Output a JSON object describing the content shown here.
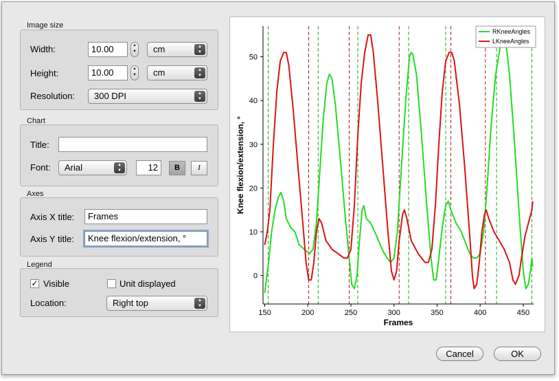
{
  "image_size": {
    "title": "Image size",
    "width_label": "Width:",
    "width_value": "10.00",
    "width_unit": "cm",
    "height_label": "Height:",
    "height_value": "10.00",
    "height_unit": "cm",
    "resolution_label": "Resolution:",
    "resolution_value": "300 DPI"
  },
  "chart_group": {
    "title": "Chart",
    "title_label": "Title:",
    "title_value": "",
    "font_label": "Font:",
    "font_value": "Arial",
    "font_size": "12",
    "bold_label": "B",
    "italic_label": "I"
  },
  "axes": {
    "title": "Axes",
    "x_label": "Axis X title:",
    "x_value": "Frames",
    "y_label": "Axis Y title:",
    "y_value": "Knee flexion/extension, °"
  },
  "legend": {
    "title": "Legend",
    "visible_label": "Visible",
    "visible_checked": "✓",
    "unit_label": "Unit displayed",
    "location_label": "Location:",
    "location_value": "Right top"
  },
  "buttons": {
    "cancel": "Cancel",
    "ok": "OK"
  },
  "chart_data": {
    "type": "line",
    "xlabel": "Frames",
    "ylabel": "Knee flexion/extension, °",
    "xlim": [
      148,
      462
    ],
    "ylim": [
      -6.5,
      57
    ],
    "x_ticks": [
      150,
      200,
      250,
      300,
      350,
      400,
      450
    ],
    "y_ticks": [
      0,
      10,
      20,
      30,
      40,
      50
    ],
    "legend_position": "top-right",
    "series": [
      {
        "name": "RKneeAngles",
        "color": "#22dd22",
        "points": [
          [
            150,
            -4
          ],
          [
            155,
            4
          ],
          [
            158,
            10
          ],
          [
            162,
            15
          ],
          [
            166,
            18
          ],
          [
            169,
            19
          ],
          [
            172,
            17
          ],
          [
            175,
            13
          ],
          [
            180,
            11
          ],
          [
            185,
            10
          ],
          [
            190,
            7
          ],
          [
            196,
            6
          ],
          [
            202,
            5
          ],
          [
            206,
            6
          ],
          [
            210,
            12
          ],
          [
            214,
            24
          ],
          [
            218,
            36
          ],
          [
            222,
            44
          ],
          [
            225,
            46
          ],
          [
            228,
            45
          ],
          [
            232,
            39
          ],
          [
            238,
            26
          ],
          [
            244,
            12
          ],
          [
            248,
            4
          ],
          [
            251,
            -2
          ],
          [
            254,
            -3
          ],
          [
            257,
            0
          ],
          [
            260,
            8
          ],
          [
            263,
            15
          ],
          [
            265,
            16
          ],
          [
            268,
            13
          ],
          [
            273,
            12
          ],
          [
            280,
            9
          ],
          [
            286,
            6
          ],
          [
            292,
            4
          ],
          [
            296,
            3
          ],
          [
            300,
            4
          ],
          [
            304,
            10
          ],
          [
            309,
            26
          ],
          [
            314,
            41
          ],
          [
            318,
            50
          ],
          [
            320,
            51
          ],
          [
            322,
            50.5
          ],
          [
            326,
            46
          ],
          [
            332,
            32
          ],
          [
            338,
            16
          ],
          [
            343,
            4
          ],
          [
            346,
            -1
          ],
          [
            349,
            -1
          ],
          [
            352,
            4
          ],
          [
            356,
            11
          ],
          [
            360,
            16
          ],
          [
            363,
            17
          ],
          [
            366,
            15
          ],
          [
            372,
            12
          ],
          [
            378,
            10
          ],
          [
            384,
            7
          ],
          [
            388,
            5
          ],
          [
            392,
            4
          ],
          [
            396,
            4
          ],
          [
            400,
            5
          ],
          [
            404,
            10
          ],
          [
            408,
            20
          ],
          [
            413,
            35
          ],
          [
            418,
            46
          ],
          [
            423,
            52
          ],
          [
            427,
            54
          ],
          [
            430,
            53
          ],
          [
            434,
            46
          ],
          [
            440,
            30
          ],
          [
            446,
            12
          ],
          [
            450,
            1
          ],
          [
            453,
            -3
          ],
          [
            456,
            -2
          ],
          [
            459,
            2
          ],
          [
            460,
            4
          ],
          [
            461,
            2
          ]
        ]
      },
      {
        "name": "LKneeAngles",
        "color": "#dd1111",
        "points": [
          [
            150,
            7
          ],
          [
            153,
            10
          ],
          [
            156,
            15
          ],
          [
            160,
            30
          ],
          [
            164,
            42
          ],
          [
            168,
            49
          ],
          [
            172,
            51
          ],
          [
            175,
            51
          ],
          [
            178,
            48
          ],
          [
            183,
            38
          ],
          [
            189,
            24
          ],
          [
            195,
            10
          ],
          [
            198,
            3
          ],
          [
            201,
            -1
          ],
          [
            204,
            -1
          ],
          [
            207,
            3
          ],
          [
            210,
            10
          ],
          [
            213,
            13
          ],
          [
            216,
            12
          ],
          [
            221,
            8
          ],
          [
            228,
            6
          ],
          [
            235,
            5
          ],
          [
            242,
            4
          ],
          [
            246,
            4
          ],
          [
            250,
            6
          ],
          [
            254,
            16
          ],
          [
            258,
            32
          ],
          [
            262,
            44
          ],
          [
            266,
            51
          ],
          [
            270,
            55
          ],
          [
            273,
            55
          ],
          [
            276,
            51
          ],
          [
            281,
            40
          ],
          [
            287,
            25
          ],
          [
            293,
            10
          ],
          [
            297,
            1
          ],
          [
            300,
            -1
          ],
          [
            303,
            1
          ],
          [
            306,
            8
          ],
          [
            310,
            14
          ],
          [
            312,
            15
          ],
          [
            315,
            13
          ],
          [
            320,
            8
          ],
          [
            328,
            5
          ],
          [
            336,
            3
          ],
          [
            340,
            3
          ],
          [
            344,
            6
          ],
          [
            348,
            16
          ],
          [
            352,
            30
          ],
          [
            356,
            42
          ],
          [
            360,
            49
          ],
          [
            364,
            51
          ],
          [
            367,
            51
          ],
          [
            370,
            49
          ],
          [
            376,
            39
          ],
          [
            382,
            25
          ],
          [
            388,
            9
          ],
          [
            391,
            0
          ],
          [
            393,
            -3
          ],
          [
            396,
            -2
          ],
          [
            399,
            3
          ],
          [
            402,
            10
          ],
          [
            405,
            14
          ],
          [
            407,
            15
          ],
          [
            410,
            13
          ],
          [
            416,
            10
          ],
          [
            422,
            8
          ],
          [
            428,
            6
          ],
          [
            434,
            3
          ],
          [
            438,
            -1
          ],
          [
            441,
            -2
          ],
          [
            445,
            0
          ],
          [
            448,
            4
          ],
          [
            452,
            9
          ],
          [
            456,
            12
          ],
          [
            460,
            15
          ],
          [
            461,
            17
          ]
        ]
      }
    ],
    "event_lines_green": [
      154,
      212,
      258,
      317,
      360,
      419,
      460
    ],
    "event_lines_red": [
      201,
      248,
      306,
      366,
      406
    ]
  }
}
